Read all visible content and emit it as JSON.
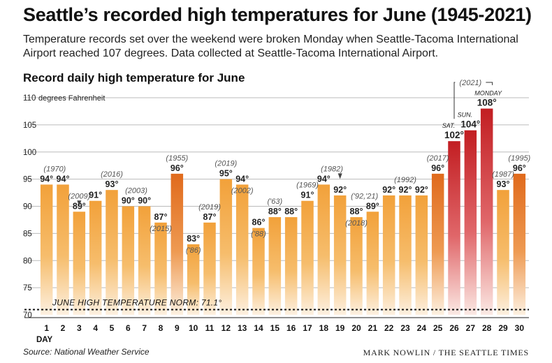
{
  "title": "Seattle’s recorded high temperatures for June (1945-2021)",
  "subtitle": "Temperature records set over the weekend were broken Monday when Seattle-Tacoma International Airport reached 107 degrees. Data collected at Seattle-Tacoma International Airport.",
  "source": "Source: National Weather Service",
  "credit": "MARK NOWLIN / THE SEATTLE TIMES",
  "colors": {
    "bar_normal": "#f2a13a",
    "bar_orange": "#e06a1c",
    "bar_red": "#c21e22",
    "bar_fade": "#fdf0e0",
    "norm_line": "#111111",
    "grid": "#bbbbbb",
    "label_year": "#555555"
  },
  "chart_data": {
    "type": "bar",
    "title": "Record daily high temperature for June",
    "ylabel": "degrees Fahrenheit",
    "xlabel": "DAY",
    "ylim": [
      70,
      110
    ],
    "yticks": [
      "70",
      "75",
      "80",
      "85",
      "90",
      "95",
      "100",
      "105",
      "110"
    ],
    "norm_label": "JUNE HIGH TEMPERATURE NORM: 71.1°",
    "norm_value": 71.1,
    "days": [
      "1",
      "2",
      "3",
      "4",
      "5",
      "6",
      "7",
      "8",
      "9",
      "10",
      "11",
      "12",
      "13",
      "14",
      "15",
      "16",
      "17",
      "18",
      "19",
      "20",
      "21",
      "22",
      "23",
      "24",
      "25",
      "26",
      "27",
      "28",
      "29",
      "30"
    ],
    "values": [
      94,
      94,
      89,
      91,
      93,
      90,
      90,
      87,
      96,
      83,
      87,
      95,
      94,
      86,
      88,
      88,
      91,
      94,
      92,
      88,
      89,
      92,
      92,
      92,
      96,
      102,
      104,
      108,
      93,
      96
    ],
    "labels": [
      "94°",
      "94°",
      "89°",
      "91°",
      "93°",
      "90°",
      "90°",
      "87°",
      "96°",
      "83°",
      "87°",
      "95°",
      "94°",
      "86°",
      "88°",
      "88°",
      "91°",
      "94°",
      "92°",
      "88°",
      "89°",
      "92°",
      "92°",
      "92°",
      "96°",
      "102°",
      "104°",
      "108°",
      "93°",
      "96°"
    ],
    "highlight": [
      {
        "day": 9,
        "style": "orange"
      },
      {
        "day": 25,
        "style": "orange"
      },
      {
        "day": 26,
        "style": "red",
        "tag": "SAT."
      },
      {
        "day": 27,
        "style": "red",
        "tag": "SUN."
      },
      {
        "day": 28,
        "style": "red",
        "tag": "MONDAY"
      },
      {
        "day": 30,
        "style": "orange"
      }
    ],
    "year_notes": [
      {
        "day": 1,
        "text": "(1970)",
        "span_to": 2,
        "pos": "above"
      },
      {
        "day": 3,
        "text": "(2009)",
        "pos": "above",
        "arrow": true
      },
      {
        "day": 5,
        "text": "(2016)",
        "pos": "above"
      },
      {
        "day": 6,
        "text": "(2003)",
        "span_to": 7,
        "pos": "above"
      },
      {
        "day": 8,
        "text": "(2015)",
        "pos": "inside"
      },
      {
        "day": 9,
        "text": "(1955)",
        "pos": "above"
      },
      {
        "day": 10,
        "text": "('86)",
        "pos": "inside"
      },
      {
        "day": 11,
        "text": "(2019)",
        "pos": "above"
      },
      {
        "day": 12,
        "text": "(2019)",
        "pos": "above"
      },
      {
        "day": 13,
        "text": "(2002)",
        "pos": "inside"
      },
      {
        "day": 14,
        "text": "('88)",
        "pos": "inside"
      },
      {
        "day": 15,
        "text": "('63)",
        "pos": "above"
      },
      {
        "day": 17,
        "text": "(1969)",
        "pos": "above"
      },
      {
        "day": 18,
        "text": "(1982)",
        "span_to": 19,
        "pos": "above",
        "arrow_day": 19
      },
      {
        "day": 20,
        "text": "(2018)",
        "pos": "inside"
      },
      {
        "day": 20,
        "text": "('92,'21)",
        "span_to": 21,
        "pos": "above"
      },
      {
        "day": 23,
        "text": "(1992)",
        "pos": "above"
      },
      {
        "day": 25,
        "text": "(2017)",
        "pos": "above"
      },
      {
        "day": 27,
        "text": "(2021)",
        "pos": "top-bracket",
        "span_from": 26,
        "span_to": 28
      },
      {
        "day": 29,
        "text": "(1987)",
        "pos": "above"
      },
      {
        "day": 30,
        "text": "(1995)",
        "pos": "above"
      }
    ]
  }
}
